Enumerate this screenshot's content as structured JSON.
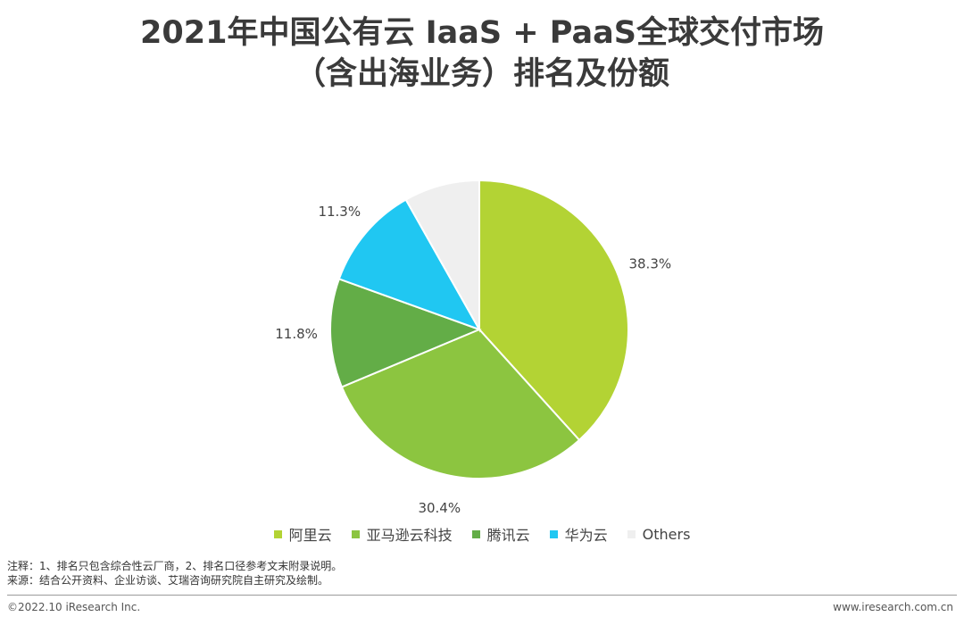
{
  "title": {
    "line1": "2021年中国公有云 IaaS + PaaS全球交付市场",
    "line2": "（含出海业务）排名及份额"
  },
  "chart_data": {
    "type": "pie",
    "slices": [
      {
        "label": "阿里云",
        "value": 38.3,
        "value_label": "38.3%",
        "color": "#b3d334"
      },
      {
        "label": "亚马逊云科技",
        "value": 30.4,
        "value_label": "30.4%",
        "color": "#8cc540"
      },
      {
        "label": "腾讯云",
        "value": 11.8,
        "value_label": "11.8%",
        "color": "#63ad47"
      },
      {
        "label": "华为云",
        "value": 11.3,
        "value_label": "11.3%",
        "color": "#20c7f2"
      },
      {
        "label": "Others",
        "value": 8.2,
        "value_label": "",
        "color": "#efefef"
      }
    ],
    "start_angle": "12 o'clock",
    "direction": "clockwise",
    "legend_position": "bottom"
  },
  "notes": {
    "line1": "注释：1、排名只包含综合性云厂商，2、排名口径参考文末附录说明。",
    "line2": "来源：结合公开资料、企业访谈、艾瑞咨询研究院自主研究及绘制。"
  },
  "footer": {
    "left": "©2022.10 iResearch Inc.",
    "right": "www.iresearch.com.cn"
  }
}
